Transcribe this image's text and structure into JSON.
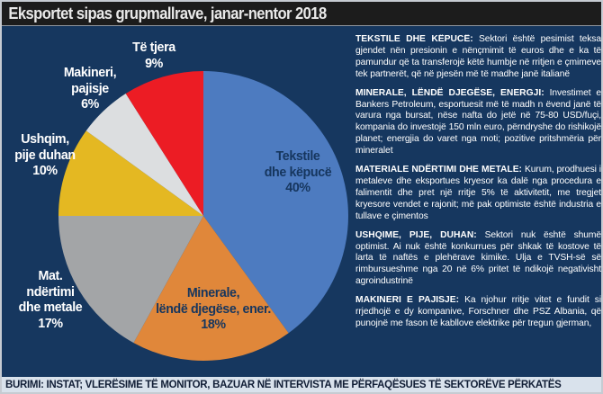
{
  "title_bar": {
    "title": "Eksportet sipas grupmallrave, janar-nentor 2018"
  },
  "chart_data": {
    "type": "pie",
    "title": "Eksportet sipas grupmallrave, janar-nentor 2018",
    "unit": "%",
    "direction": "clockwise",
    "start_angle": "12 o'clock",
    "slices": [
      {
        "id": "tekstile",
        "label": "Tekstile\ndhe këpucë",
        "pct_label": "40%",
        "value": 40,
        "color": "#4d7bc0",
        "label_placement": "inside"
      },
      {
        "id": "minerale",
        "label": "Minerale,\nlëndë djegëse, ener.",
        "pct_label": "18%",
        "value": 18,
        "color": "#e0873a",
        "label_placement": "inside"
      },
      {
        "id": "materiale",
        "label": "Mat.\nndërtimi\ndhe metale",
        "pct_label": "17%",
        "value": 17,
        "color": "#a3a5a7",
        "label_placement": "outside"
      },
      {
        "id": "ushqim",
        "label": "Ushqim,\npije duhan",
        "pct_label": "10%",
        "value": 10,
        "color": "#e4b822",
        "label_placement": "outside"
      },
      {
        "id": "makineri",
        "label": "Makineri,\npajisje",
        "pct_label": "6%",
        "value": 6,
        "color": "#dcdee0",
        "label_placement": "outside"
      },
      {
        "id": "te-tjera",
        "label": "Të tjera",
        "pct_label": "9%",
        "value": 9,
        "color": "#ec1c24",
        "label_placement": "outside"
      }
    ]
  },
  "sections": [
    {
      "heading": "TEKSTILE DHE KËPUCË:",
      "body": "Sektori është pesimist teksa gjendet nën presionin e nënçmimit të euros dhe e ka të pamundur që ta transferojë këtë humbje në rritjen e çmimeve tek partnerët, që në pjesën më të madhe janë italianë"
    },
    {
      "heading": "MINERALE, LËNDË DJEGËSE, ENERGJI:",
      "body": "Investimet e Bankers Petroleum, esportuesit më të madh n ëvend janë të varura nga bursat, nëse nafta do jetë në 75-80 USD/fuçi, kompania do investojë 150 mln euro, përndryshe do rishikojë planet; energjia do varet nga moti; pozitive pritshmëria për mineralet"
    },
    {
      "heading": "MATERIALE NDËRTIMI DHE METALE:",
      "body": "Kurum, prodhuesi i metaleve dhe eksportues kryesor ka dalë nga procedura e falimentit dhe pret një rritje 5% të aktivitetit, me tregjet kryesore vendet e rajonit; më pak optimiste është industria e tullave e çimentos"
    },
    {
      "heading": "USHQIME, PIJE, DUHAN:",
      "body": "Sektori nuk është shumë optimist. Ai nuk është konkurrues për shkak të kostove të larta të naftës e plehërave kimike. Ulja e TVSH-së së rimbursueshme nga 20 në 6% pritet të ndikojë negativisht agroindustrinë"
    },
    {
      "heading": "MAKINERI E PAJISJE:",
      "body": "Ka njohur rritje vitet e fundit si rrjedhojë e dy kompanive, Forschner dhe PSZ Albania, që punojnë me fason të kabllove elektrike për tregun gjerman,"
    }
  ],
  "source_bar": {
    "text": "BURIMI: INSTAT; VLERËSIME TË MONITOR, BAZUAR NË INTERVISTA ME PËRFAQËSUES TË SEKTORËVE PËRKATËS"
  },
  "colors": {
    "background": "#16375f",
    "title_bar_bg": "#1c1c1c",
    "title_text": "#e9e9e9",
    "inside_label_text": "#16365e",
    "outside_label_text": "#ffffff",
    "source_bar_bg": "#d9e2ec",
    "source_bar_text": "#101d35",
    "frame_border": "#c6cbd2"
  }
}
